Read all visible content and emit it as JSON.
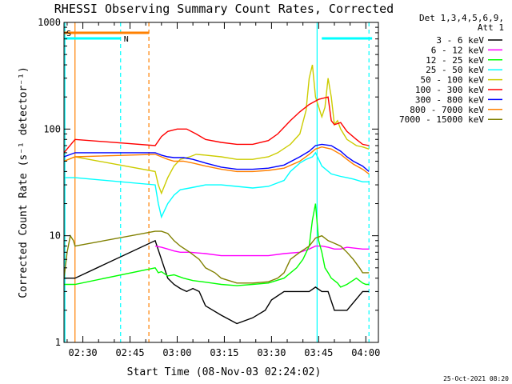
{
  "chart_data": {
    "type": "line",
    "title": "RHESSI Observing Summary Count Rates, Corrected",
    "xlabel": "Start Time (08-Nov-03 02:24:02)",
    "ylabel": "Corrected Count Rate (s⁻¹ detector⁻¹)",
    "yscale": "log",
    "ylim": [
      1,
      1000
    ],
    "xlim_minutes": [
      0,
      100
    ],
    "x_tick_labels": [
      "02:30",
      "02:45",
      "03:00",
      "03:15",
      "03:30",
      "03:45",
      "04:00"
    ],
    "x_tick_minutes": [
      6,
      21,
      36,
      51,
      66,
      81,
      96
    ],
    "y_tick_labels": [
      "1",
      "10",
      "100",
      "1000"
    ],
    "y_tick_values": [
      1,
      10,
      100,
      1000
    ],
    "legend_header": [
      "Det 1,3,4,5,6,9,",
      "Att 1"
    ],
    "legend_position": "top-right",
    "timestamp": "25-Oct-2021 08:20",
    "flags": [
      {
        "label": "S",
        "color": "#ff8000",
        "start": 0,
        "end": 27
      },
      {
        "label": "N",
        "color": "#00ffff",
        "start": 0,
        "end": 18
      }
    ],
    "flag_right": {
      "color": "#00ffff",
      "start": 82,
      "end": 98
    },
    "vlines": [
      {
        "x": 0.3,
        "color": "#00ffff",
        "style": "solid"
      },
      {
        "x": 3.5,
        "color": "#ff8000",
        "style": "solid"
      },
      {
        "x": 18,
        "color": "#00ffff",
        "style": "dashed"
      },
      {
        "x": 27,
        "color": "#ff8000",
        "style": "dashed"
      },
      {
        "x": 80.5,
        "color": "#00ffff",
        "style": "solid"
      },
      {
        "x": 97,
        "color": "#00ffff",
        "style": "dashed"
      }
    ],
    "series": [
      {
        "name": "3 - 6 keV",
        "color": "#000000",
        "x": [
          0,
          3.5,
          29,
          31,
          33,
          35,
          37,
          39,
          41,
          43,
          45,
          50,
          55,
          60,
          64,
          66,
          70,
          74,
          78,
          80,
          82,
          84,
          86,
          90,
          95,
          97
        ],
        "y": [
          4,
          4,
          9,
          6,
          4,
          3.5,
          3.2,
          3,
          3.2,
          3,
          2.2,
          1.8,
          1.5,
          1.7,
          2,
          2.5,
          3,
          3,
          3,
          3.3,
          3,
          3,
          2,
          2,
          3,
          3
        ]
      },
      {
        "name": "6 - 12 keV",
        "color": "#ff00ff",
        "x": [
          29,
          31,
          33,
          35,
          37,
          40,
          45,
          50,
          55,
          60,
          65,
          70,
          75,
          78,
          80,
          82,
          84,
          86,
          88,
          90,
          95,
          97
        ],
        "y": [
          8,
          7.8,
          7.5,
          7.2,
          7,
          7,
          6.8,
          6.5,
          6.5,
          6.5,
          6.5,
          6.8,
          7,
          7.5,
          8,
          8,
          7.8,
          7.5,
          7.5,
          7.8,
          7.5,
          7.5
        ]
      },
      {
        "name": "12 - 25 keV",
        "color": "#00ff00",
        "x": [
          0,
          3.5,
          29,
          30,
          31,
          33,
          35,
          38,
          41,
          44,
          47,
          50,
          55,
          60,
          65,
          70,
          74,
          76,
          78,
          79,
          80,
          81,
          82,
          83,
          84,
          85,
          87,
          88,
          90,
          93,
          95,
          96,
          97
        ],
        "y": [
          3.5,
          3.5,
          5,
          4.5,
          4.6,
          4.2,
          4.3,
          4,
          3.8,
          3.7,
          3.6,
          3.5,
          3.4,
          3.5,
          3.6,
          4,
          5,
          6,
          8,
          14,
          20,
          9,
          7,
          5,
          4.5,
          4,
          3.6,
          3.3,
          3.5,
          4,
          3.6,
          3.5,
          3.5
        ]
      },
      {
        "name": "25 - 50 keV",
        "color": "#00ffff",
        "x": [
          0,
          3.5,
          29,
          30,
          31,
          33,
          35,
          37,
          40,
          45,
          50,
          55,
          60,
          65,
          70,
          72,
          75,
          77,
          79,
          80,
          82,
          85,
          88,
          90,
          92,
          95,
          97
        ],
        "y": [
          35,
          35,
          30,
          20,
          15,
          20,
          24,
          27,
          28,
          30,
          30,
          29,
          28,
          29,
          33,
          40,
          48,
          52,
          55,
          60,
          45,
          38,
          36,
          35,
          34,
          32,
          32
        ]
      },
      {
        "name": "50 - 100 keV",
        "color": "#cccc00",
        "x": [
          0,
          3.5,
          29,
          30,
          31,
          33,
          35,
          37,
          40,
          42,
          45,
          50,
          55,
          60,
          65,
          68,
          72,
          75,
          77,
          78,
          79,
          80,
          82,
          83,
          84,
          85,
          86,
          87,
          88,
          90,
          93,
          95,
          97
        ],
        "y": [
          50,
          55,
          40,
          30,
          25,
          35,
          45,
          52,
          55,
          58,
          57,
          55,
          52,
          52,
          55,
          60,
          72,
          90,
          150,
          300,
          400,
          200,
          130,
          160,
          300,
          200,
          110,
          120,
          100,
          80,
          70,
          68,
          65
        ]
      },
      {
        "name": "100 - 300 keV",
        "color": "#ff0000",
        "x": [
          0,
          3.5,
          29,
          31,
          33,
          36,
          39,
          42,
          45,
          50,
          55,
          60,
          65,
          68,
          72,
          75,
          78,
          81,
          84,
          85,
          86,
          88,
          90,
          93,
          95,
          97
        ],
        "y": [
          60,
          80,
          70,
          85,
          95,
          100,
          100,
          90,
          80,
          75,
          72,
          72,
          78,
          90,
          120,
          145,
          170,
          190,
          200,
          120,
          110,
          115,
          95,
          80,
          72,
          70
        ]
      },
      {
        "name": "300 - 800 keV",
        "color": "#0000ff",
        "x": [
          0,
          3.5,
          29,
          31,
          33,
          35,
          38,
          41,
          45,
          50,
          55,
          60,
          65,
          70,
          75,
          78,
          80,
          82,
          85,
          88,
          90,
          92,
          95,
          97
        ],
        "y": [
          55,
          60,
          60,
          57,
          55,
          54,
          54,
          52,
          48,
          44,
          42,
          42,
          43,
          46,
          55,
          62,
          70,
          72,
          70,
          62,
          55,
          50,
          45,
          40
        ]
      },
      {
        "name": "800 - 7000 keV",
        "color": "#ff8000",
        "x": [
          0,
          3.5,
          29,
          31,
          33,
          35,
          38,
          41,
          45,
          50,
          55,
          60,
          65,
          70,
          75,
          78,
          80,
          82,
          85,
          88,
          90,
          92,
          95,
          97
        ],
        "y": [
          50,
          55,
          58,
          55,
          52,
          50,
          50,
          48,
          45,
          42,
          40,
          40,
          41,
          43,
          50,
          58,
          65,
          68,
          65,
          58,
          52,
          47,
          42,
          38
        ]
      },
      {
        "name": "7000 - 15000 keV",
        "color": "#808000",
        "x": [
          0,
          1,
          2,
          3,
          3.5,
          29,
          31,
          33,
          35,
          37,
          40,
          43,
          45,
          48,
          50,
          55,
          60,
          65,
          68,
          70,
          72,
          75,
          78,
          80,
          82,
          84,
          86,
          88,
          90,
          92,
          94,
          95,
          97
        ],
        "y": [
          4,
          7,
          10,
          9,
          8,
          11,
          11,
          10.5,
          9,
          8,
          7,
          6,
          5,
          4.5,
          4,
          3.6,
          3.6,
          3.7,
          4,
          4.5,
          6,
          7,
          8,
          9.5,
          10,
          9,
          8.5,
          8,
          7,
          6,
          5,
          4.5,
          4.5
        ]
      }
    ]
  }
}
